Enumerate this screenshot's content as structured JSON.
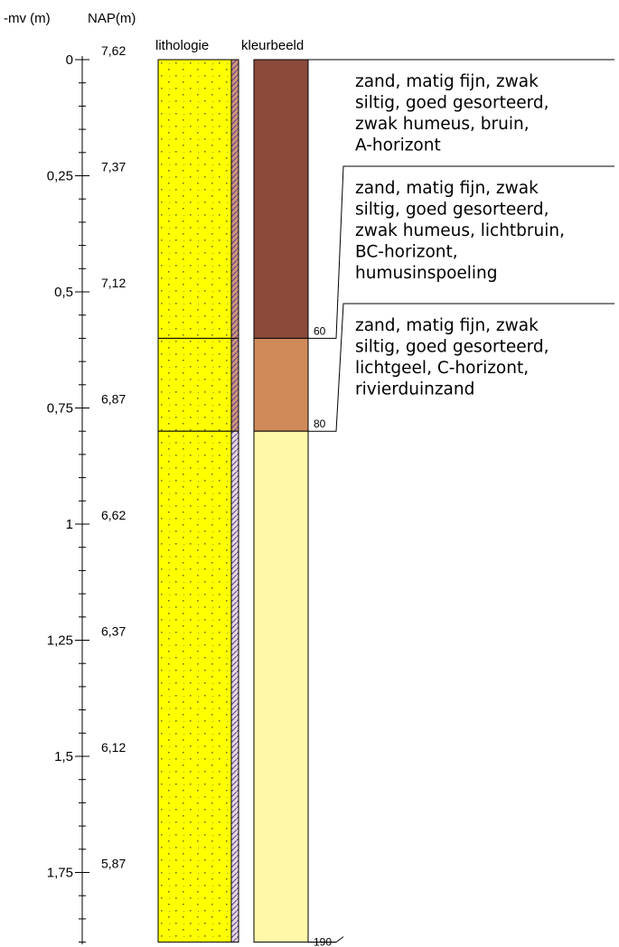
{
  "headers": {
    "depth_axis": "-mv (m)",
    "nap_axis": "NAP(m)",
    "lithology_column": "lithologie",
    "color_column": "kleurbeeld"
  },
  "depth_range_m": [
    0,
    1.9
  ],
  "depth_ticks": [
    {
      "depth_m": 0,
      "label": "0",
      "nap": "7,62"
    },
    {
      "depth_m": 0.25,
      "label": "0,25",
      "nap": "7,37"
    },
    {
      "depth_m": 0.5,
      "label": "0,5",
      "nap": "7,12"
    },
    {
      "depth_m": 0.75,
      "label": "0,75",
      "nap": "6,87"
    },
    {
      "depth_m": 1.0,
      "label": "1",
      "nap": "6,62"
    },
    {
      "depth_m": 1.25,
      "label": "1,25",
      "nap": "6,37"
    },
    {
      "depth_m": 1.5,
      "label": "1,5",
      "nap": "6,12"
    },
    {
      "depth_m": 1.75,
      "label": "1,75",
      "nap": "5,87"
    }
  ],
  "minor_tick_step_m": 0.05,
  "layers": [
    {
      "top_cm": 0,
      "bottom_cm": 60,
      "lithology_color": "#ffff00",
      "strip_color": "#c98a6a",
      "color_image": "#8b4a3a",
      "description": [
        "zand, matig fijn, zwak",
        "siltig, goed gesorteerd,",
        "zwak humeus, bruin,",
        "A-horizont"
      ]
    },
    {
      "top_cm": 60,
      "bottom_cm": 80,
      "lithology_color": "#ffff00",
      "strip_color": "#c98a6a",
      "color_image": "#d08a5a",
      "description": [
        "zand, matig fijn, zwak",
        "siltig, goed gesorteerd,",
        "zwak humeus, lichtbruin,",
        "BC-horizont,",
        "humusinspoeling"
      ]
    },
    {
      "top_cm": 80,
      "bottom_cm": 190,
      "lithology_color": "#ffff00",
      "strip_color": "#d9d9f0",
      "color_image": "#fff8a8",
      "description": [
        "zand, matig fijn, zwak",
        "siltig, goed gesorteerd,",
        "lichtgeel, C-horizont,",
        "rivierduinzand"
      ]
    }
  ],
  "boundary_labels": [
    "60",
    "80",
    "190"
  ]
}
